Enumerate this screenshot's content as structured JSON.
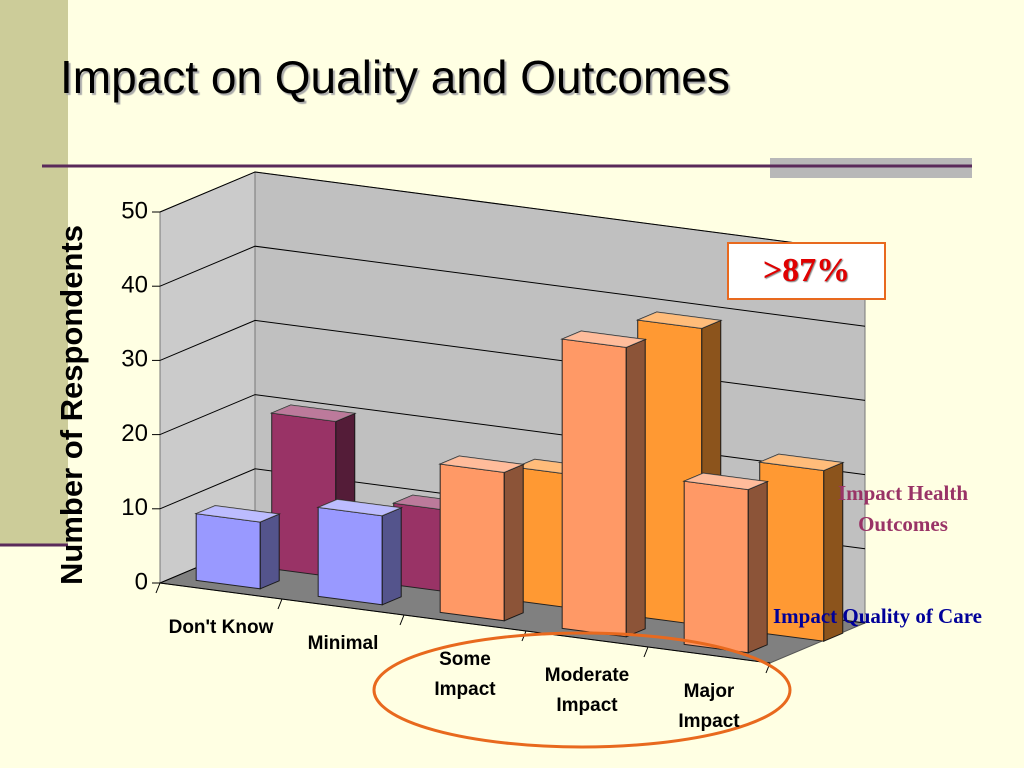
{
  "chart_data": {
    "type": "bar3d",
    "title": "Impact on Quality and Outcomes",
    "ylabel": "Number of Respondents",
    "annotation": ">87%",
    "categories": [
      "Don't Know",
      "Minimal",
      "Some Impact",
      "Moderate Impact",
      "Major Impact"
    ],
    "series": [
      {
        "name": "Impact Health Outcomes",
        "label_color": "#993366",
        "colors": [
          "#993366",
          "#993366",
          "#ff9933",
          "#ff9933",
          "#ff9933"
        ],
        "values": [
          21,
          11,
          18,
          40,
          23
        ]
      },
      {
        "name": "Impact Quality of Care",
        "label_color": "#000099",
        "colors": [
          "#9999ff",
          "#9999ff",
          "#ff9966",
          "#ff9966",
          "#ff9966"
        ],
        "values": [
          9,
          12,
          20,
          39,
          22
        ]
      }
    ],
    "ylim": [
      0,
      50
    ],
    "yticks": [
      0,
      10,
      20,
      30,
      40,
      50
    ],
    "grid": true
  }
}
